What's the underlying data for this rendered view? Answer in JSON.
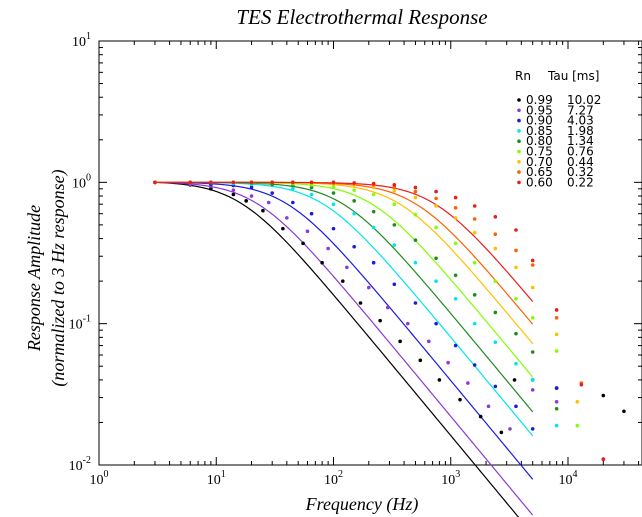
{
  "chart_data": {
    "type": "line",
    "title": "TES Electrothermal Response",
    "xlabel": "Frequency (Hz)",
    "ylabel_line1": "Response Amplitude",
    "ylabel_line2": "(normalized to 3 Hz response)",
    "x_scale": "log",
    "y_scale": "log",
    "xlim": [
      1,
      60000
    ],
    "ylim": [
      0.01,
      10
    ],
    "x_ticks": [
      {
        "base": "10",
        "exp": "0",
        "value": 1
      },
      {
        "base": "10",
        "exp": "1",
        "value": 10
      },
      {
        "base": "10",
        "exp": "2",
        "value": 100
      },
      {
        "base": "10",
        "exp": "3",
        "value": 1000
      },
      {
        "base": "10",
        "exp": "4",
        "value": 10000
      }
    ],
    "y_ticks": [
      {
        "base": "10",
        "exp": "-2",
        "value": 0.01
      },
      {
        "base": "10",
        "exp": "-1",
        "value": 0.1
      },
      {
        "base": "10",
        "exp": "0",
        "value": 1
      },
      {
        "base": "10",
        "exp": "1",
        "value": 10
      }
    ],
    "grid": false,
    "legend": {
      "position": "top-right",
      "header_rn": "Rn",
      "header_tau": "Tau [ms]"
    },
    "series": [
      {
        "rn": "0.99",
        "tau": "10.02",
        "tau_ms": 10.02,
        "color": "#000000",
        "points": [
          [
            3,
            1.0
          ],
          [
            6,
            0.96
          ],
          [
            9,
            0.9
          ],
          [
            14,
            0.82
          ],
          [
            18,
            0.74
          ],
          [
            25,
            0.63
          ],
          [
            37,
            0.47
          ],
          [
            55,
            0.37
          ],
          [
            80,
            0.27
          ],
          [
            120,
            0.2
          ],
          [
            170,
            0.14
          ],
          [
            250,
            0.105
          ],
          [
            370,
            0.075
          ],
          [
            550,
            0.055
          ],
          [
            800,
            0.04
          ],
          [
            1200,
            0.029
          ],
          [
            1800,
            0.022
          ],
          [
            2700,
            0.017
          ],
          [
            3500,
            0.04
          ],
          [
            5000,
            0.04
          ],
          [
            8000,
            0.035
          ],
          [
            20000,
            0.031
          ],
          [
            30000,
            0.024
          ]
        ]
      },
      {
        "rn": "0.95",
        "tau": "7.27",
        "tau_ms": 7.27,
        "color": "#8a3ad6",
        "points": [
          [
            3,
            1.0
          ],
          [
            6,
            0.97
          ],
          [
            9,
            0.94
          ],
          [
            14,
            0.88
          ],
          [
            20,
            0.8
          ],
          [
            28,
            0.72
          ],
          [
            40,
            0.56
          ],
          [
            60,
            0.45
          ],
          [
            90,
            0.34
          ],
          [
            130,
            0.25
          ],
          [
            200,
            0.18
          ],
          [
            290,
            0.13
          ],
          [
            430,
            0.1
          ],
          [
            650,
            0.075
          ],
          [
            950,
            0.053
          ],
          [
            1400,
            0.038
          ],
          [
            2100,
            0.026
          ],
          [
            3200,
            0.018
          ],
          [
            5000,
            0.034
          ],
          [
            8000,
            0.028
          ],
          [
            20000,
            0.011
          ]
        ]
      },
      {
        "rn": "0.90",
        "tau": "4.03",
        "tau_ms": 4.03,
        "color": "#1a1ae0",
        "points": [
          [
            3,
            1.0
          ],
          [
            6,
            1.0
          ],
          [
            9,
            0.97
          ],
          [
            14,
            0.95
          ],
          [
            20,
            0.92
          ],
          [
            30,
            0.84
          ],
          [
            45,
            0.72
          ],
          [
            65,
            0.6
          ],
          [
            100,
            0.47
          ],
          [
            150,
            0.35
          ],
          [
            220,
            0.27
          ],
          [
            330,
            0.19
          ],
          [
            500,
            0.14
          ],
          [
            750,
            0.1
          ],
          [
            1100,
            0.07
          ],
          [
            1600,
            0.051
          ],
          [
            2400,
            0.036
          ],
          [
            3600,
            0.026
          ],
          [
            5000,
            0.018
          ],
          [
            8000,
            0.035
          ],
          [
            20000,
            0.011
          ]
        ]
      },
      {
        "rn": "0.85",
        "tau": "1.98",
        "tau_ms": 1.98,
        "color": "#00e5ee",
        "points": [
          [
            3,
            1.0
          ],
          [
            6,
            1.0
          ],
          [
            9,
            1.0
          ],
          [
            14,
            0.98
          ],
          [
            20,
            0.97
          ],
          [
            30,
            0.95
          ],
          [
            45,
            0.9
          ],
          [
            65,
            0.82
          ],
          [
            100,
            0.7
          ],
          [
            150,
            0.6
          ],
          [
            220,
            0.48
          ],
          [
            330,
            0.36
          ],
          [
            500,
            0.27
          ],
          [
            750,
            0.2
          ],
          [
            1100,
            0.15
          ],
          [
            1600,
            0.1
          ],
          [
            2400,
            0.074
          ],
          [
            3600,
            0.052
          ],
          [
            5000,
            0.04
          ],
          [
            8000,
            0.019
          ]
        ]
      },
      {
        "rn": "0.80",
        "tau": "1.34",
        "tau_ms": 1.34,
        "color": "#1e8c1e",
        "points": [
          [
            3,
            1.0
          ],
          [
            6,
            1.0
          ],
          [
            9,
            1.0
          ],
          [
            14,
            1.0
          ],
          [
            20,
            0.99
          ],
          [
            30,
            0.97
          ],
          [
            45,
            0.95
          ],
          [
            65,
            0.92
          ],
          [
            100,
            0.84
          ],
          [
            150,
            0.74
          ],
          [
            220,
            0.62
          ],
          [
            330,
            0.5
          ],
          [
            500,
            0.39
          ],
          [
            750,
            0.29
          ],
          [
            1100,
            0.22
          ],
          [
            1600,
            0.16
          ],
          [
            2400,
            0.12
          ],
          [
            3600,
            0.085
          ],
          [
            5000,
            0.063
          ],
          [
            8000,
            0.025
          ]
        ]
      },
      {
        "rn": "0.75",
        "tau": "0.76",
        "tau_ms": 0.76,
        "color": "#7fff00",
        "points": [
          [
            3,
            1.0
          ],
          [
            6,
            1.0
          ],
          [
            9,
            1.0
          ],
          [
            14,
            1.0
          ],
          [
            20,
            1.0
          ],
          [
            30,
            1.0
          ],
          [
            45,
            0.98
          ],
          [
            65,
            0.96
          ],
          [
            100,
            0.93
          ],
          [
            150,
            0.88
          ],
          [
            220,
            0.82
          ],
          [
            330,
            0.7
          ],
          [
            500,
            0.59
          ],
          [
            750,
            0.48
          ],
          [
            1100,
            0.37
          ],
          [
            1600,
            0.27
          ],
          [
            2400,
            0.2
          ],
          [
            3600,
            0.15
          ],
          [
            5000,
            0.11
          ],
          [
            8000,
            0.064
          ],
          [
            12000,
            0.019
          ]
        ]
      },
      {
        "rn": "0.70",
        "tau": "0.44",
        "tau_ms": 0.44,
        "color": "#ffc000",
        "points": [
          [
            3,
            1.0
          ],
          [
            6,
            1.0
          ],
          [
            9,
            1.0
          ],
          [
            14,
            1.0
          ],
          [
            20,
            1.0
          ],
          [
            30,
            1.0
          ],
          [
            45,
            1.0
          ],
          [
            65,
            0.99
          ],
          [
            100,
            0.98
          ],
          [
            150,
            0.96
          ],
          [
            220,
            0.92
          ],
          [
            330,
            0.87
          ],
          [
            500,
            0.78
          ],
          [
            750,
            0.68
          ],
          [
            1100,
            0.56
          ],
          [
            1600,
            0.44
          ],
          [
            2400,
            0.34
          ],
          [
            3600,
            0.25
          ],
          [
            5000,
            0.18
          ],
          [
            8000,
            0.084
          ],
          [
            12000,
            0.028
          ]
        ]
      },
      {
        "rn": "0.65",
        "tau": "0.32",
        "tau_ms": 0.32,
        "color": "#ff6000",
        "points": [
          [
            3,
            1.0
          ],
          [
            6,
            1.0
          ],
          [
            9,
            1.0
          ],
          [
            14,
            1.0
          ],
          [
            20,
            1.0
          ],
          [
            30,
            1.0
          ],
          [
            45,
            1.0
          ],
          [
            65,
            1.0
          ],
          [
            100,
            0.99
          ],
          [
            150,
            0.98
          ],
          [
            220,
            0.96
          ],
          [
            330,
            0.92
          ],
          [
            500,
            0.86
          ],
          [
            750,
            0.77
          ],
          [
            1100,
            0.66
          ],
          [
            1600,
            0.55
          ],
          [
            2400,
            0.43
          ],
          [
            3600,
            0.33
          ],
          [
            5000,
            0.26
          ],
          [
            8000,
            0.11
          ],
          [
            13000,
            0.038
          ],
          [
            20000,
            0.011
          ]
        ]
      },
      {
        "rn": "0.60",
        "tau": "0.22",
        "tau_ms": 0.22,
        "color": "#e61e1e",
        "points": [
          [
            3,
            1.0
          ],
          [
            6,
            1.0
          ],
          [
            9,
            1.0
          ],
          [
            14,
            1.0
          ],
          [
            20,
            1.0
          ],
          [
            30,
            1.0
          ],
          [
            45,
            1.0
          ],
          [
            65,
            1.0
          ],
          [
            100,
            1.0
          ],
          [
            150,
            0.99
          ],
          [
            220,
            0.98
          ],
          [
            330,
            0.96
          ],
          [
            500,
            0.92
          ],
          [
            750,
            0.86
          ],
          [
            1100,
            0.78
          ],
          [
            1600,
            0.68
          ],
          [
            2400,
            0.57
          ],
          [
            3600,
            0.46
          ],
          [
            5000,
            0.28
          ],
          [
            8000,
            0.125
          ],
          [
            13000,
            0.037
          ],
          [
            20000,
            0.011
          ]
        ]
      }
    ]
  }
}
